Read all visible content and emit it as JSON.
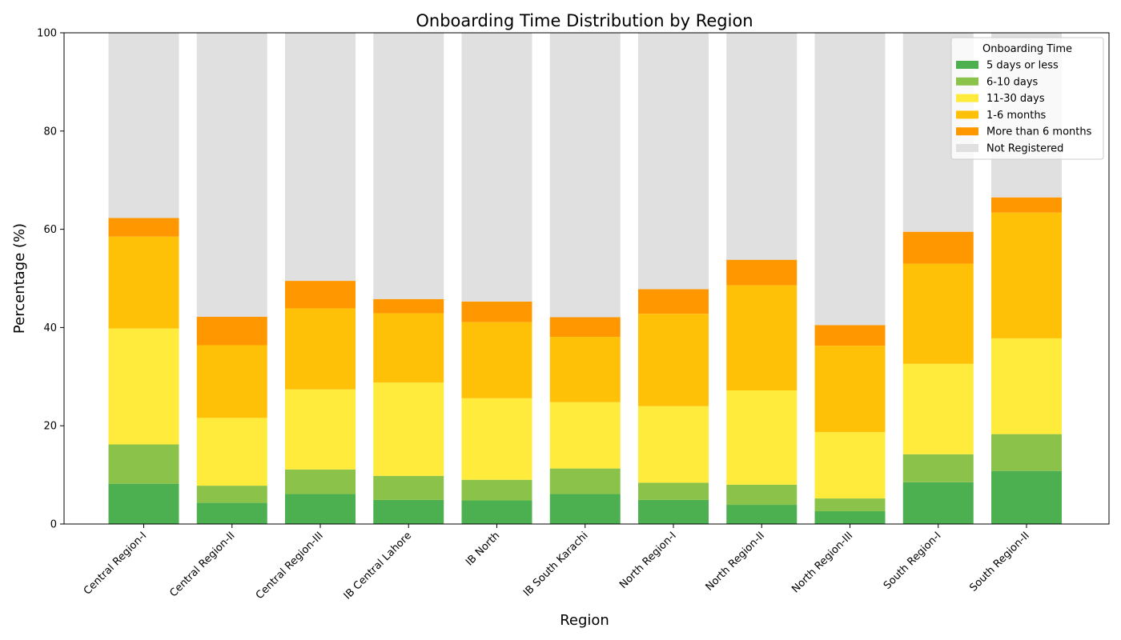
{
  "chart_data": {
    "type": "bar",
    "stacked": true,
    "title": "Onboarding Time Distribution by Region",
    "xlabel": "Region",
    "ylabel": "Percentage (%)",
    "ylim": [
      0,
      100
    ],
    "yticks": [
      0,
      20,
      40,
      60,
      80,
      100
    ],
    "grid": false,
    "legend": {
      "title": "Onboarding Time",
      "position": "top-right"
    },
    "categories": [
      "Central Region-I",
      "Central Region-II",
      "Central Region-III",
      "IB Central Lahore",
      "IB North",
      "IB South Karachi",
      "North Region-I",
      "North Region-II",
      "North Region-III",
      "South Region-I",
      "South Region-II"
    ],
    "series": [
      {
        "name": "5 days or less",
        "color": "#4caf50",
        "values": [
          8.2,
          4.3,
          6.1,
          4.9,
          4.8,
          6.1,
          4.9,
          3.9,
          2.6,
          8.5,
          10.8
        ]
      },
      {
        "name": "6-10 days",
        "color": "#8bc34a",
        "values": [
          8.0,
          3.5,
          5.0,
          4.9,
          4.2,
          5.2,
          3.5,
          4.1,
          2.6,
          5.7,
          7.5
        ]
      },
      {
        "name": "11-30 days",
        "color": "#ffeb3b",
        "values": [
          23.6,
          13.8,
          16.3,
          19.0,
          16.6,
          13.5,
          15.6,
          19.2,
          13.5,
          18.4,
          19.5
        ]
      },
      {
        "name": "1-6 months",
        "color": "#ffc107",
        "values": [
          18.7,
          14.8,
          16.5,
          14.1,
          15.5,
          13.3,
          18.8,
          21.4,
          17.6,
          20.4,
          25.6
        ]
      },
      {
        "name": "More than 6 months",
        "color": "#ff9800",
        "values": [
          3.8,
          5.8,
          5.6,
          2.9,
          4.2,
          4.0,
          5.0,
          5.2,
          4.2,
          6.5,
          3.1
        ]
      },
      {
        "name": "Not Registered",
        "color": "#e0e0e0",
        "values": [
          37.7,
          57.8,
          50.5,
          54.2,
          54.7,
          57.9,
          52.2,
          46.2,
          59.5,
          40.5,
          33.5
        ]
      }
    ]
  }
}
